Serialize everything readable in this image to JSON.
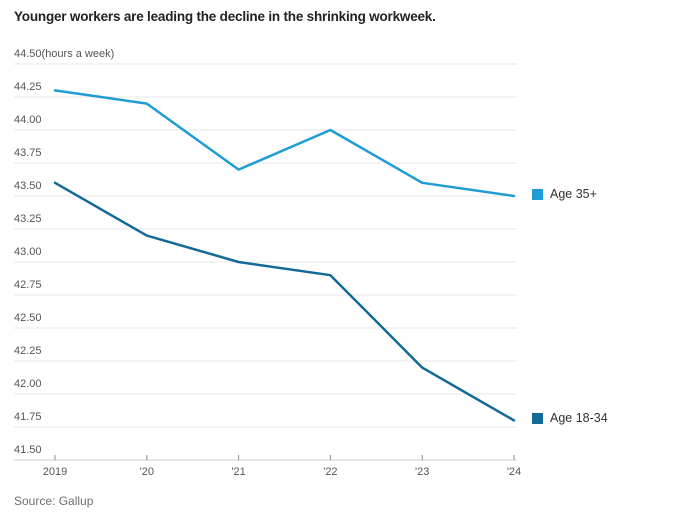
{
  "title": "Younger workers are leading the decline in the shrinking workweek.",
  "source": "Source: Gallup",
  "chart_data": {
    "type": "line",
    "title": "Younger workers are leading the decline in the shrinking workweek.",
    "unit_note": "(hours a week)",
    "ylabel": "hours a week",
    "x": [
      "2019",
      "'20",
      "'21",
      "'22",
      "'23",
      "'24"
    ],
    "series": [
      {
        "name": "Age 35+",
        "color": "#1e9cd6",
        "values": [
          44.3,
          44.2,
          43.7,
          44.0,
          43.6,
          43.5
        ]
      },
      {
        "name": "Age 18-34",
        "color": "#136a97",
        "values": [
          43.6,
          43.2,
          43.0,
          42.9,
          42.2,
          41.8
        ]
      }
    ],
    "ylim": [
      41.5,
      44.5
    ],
    "ytick_step": 0.25,
    "ytick_labels": [
      "41.50",
      "41.75",
      "42.00",
      "42.25",
      "42.50",
      "42.75",
      "43.00",
      "43.25",
      "43.50",
      "43.75",
      "44.00",
      "44.25",
      "44.50"
    ],
    "grid": true,
    "legend_position": "right-of-line-end",
    "source": "Source: Gallup"
  }
}
